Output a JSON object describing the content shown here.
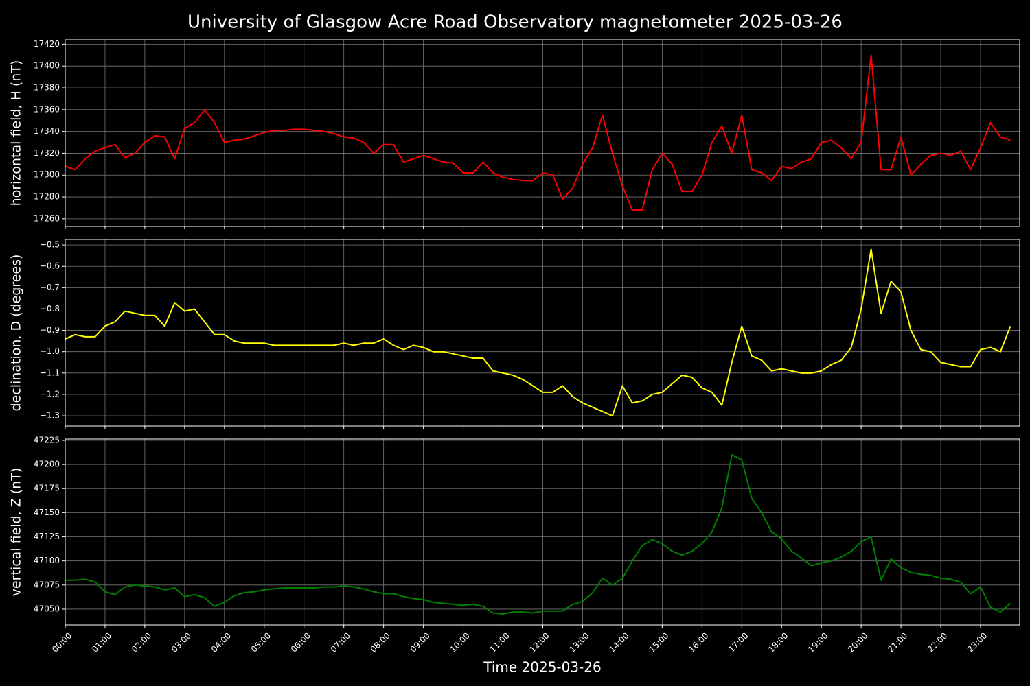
{
  "chart_data": [
    {
      "type": "line",
      "title": "University of Glasgow Acre Road Observatory magnetometer 2025-03-26",
      "ylabel": "horizontal field, H (nT)",
      "color": "#ff0000",
      "grid": true,
      "xlim": [
        "00:00",
        "23:59"
      ],
      "ylim": [
        17253,
        17424
      ],
      "yticks": [
        17260,
        17280,
        17300,
        17320,
        17340,
        17360,
        17380,
        17400,
        17420
      ],
      "x": [
        "00:00",
        "00:15",
        "00:30",
        "00:45",
        "01:00",
        "01:15",
        "01:30",
        "01:45",
        "02:00",
        "02:15",
        "02:30",
        "02:45",
        "03:00",
        "03:15",
        "03:30",
        "03:45",
        "04:00",
        "04:15",
        "04:30",
        "04:45",
        "05:00",
        "05:15",
        "05:30",
        "05:45",
        "06:00",
        "06:15",
        "06:30",
        "06:45",
        "07:00",
        "07:15",
        "07:30",
        "07:45",
        "08:00",
        "08:15",
        "08:30",
        "08:45",
        "09:00",
        "09:15",
        "09:30",
        "09:45",
        "10:00",
        "10:15",
        "10:30",
        "10:45",
        "11:00",
        "11:15",
        "11:30",
        "11:45",
        "12:00",
        "12:15",
        "12:30",
        "12:45",
        "13:00",
        "13:15",
        "13:30",
        "13:45",
        "14:00",
        "14:15",
        "14:30",
        "14:45",
        "15:00",
        "15:15",
        "15:30",
        "15:45",
        "16:00",
        "16:15",
        "16:30",
        "16:45",
        "17:00",
        "17:15",
        "17:30",
        "17:45",
        "18:00",
        "18:15",
        "18:30",
        "18:45",
        "19:00",
        "19:15",
        "19:30",
        "19:45",
        "20:00",
        "20:15",
        "20:30",
        "20:45",
        "21:00",
        "21:15",
        "21:30",
        "21:45",
        "22:00",
        "22:15",
        "22:30",
        "22:45",
        "23:00",
        "23:15",
        "23:30",
        "23:45"
      ],
      "values": [
        17308,
        17305,
        17315,
        17322,
        17325,
        17328,
        17316,
        17320,
        17330,
        17336,
        17335,
        17315,
        17343,
        17348,
        17360,
        17348,
        17330,
        17332,
        17333,
        17336,
        17339,
        17341,
        17341,
        17342,
        17342,
        17341,
        17340,
        17338,
        17335,
        17334,
        17330,
        17320,
        17328,
        17328,
        17312,
        17315,
        17318,
        17315,
        17312,
        17311,
        17302,
        17302,
        17312,
        17302,
        17298,
        17296,
        17295,
        17295,
        17302,
        17300,
        17278,
        17288,
        17310,
        17325,
        17355,
        17320,
        17290,
        17268,
        17268,
        17305,
        17320,
        17310,
        17285,
        17285,
        17300,
        17330,
        17345,
        17320,
        17355,
        17305,
        17302,
        17295,
        17308,
        17306,
        17312,
        17315,
        17330,
        17332,
        17325,
        17315,
        17330,
        17410,
        17305,
        17305,
        17335,
        17300,
        17310,
        17318,
        17320,
        17318,
        17322,
        17305,
        17325,
        17348,
        17335,
        17332
      ]
    },
    {
      "type": "line",
      "ylabel": "declination, D (degrees)",
      "color": "#ffff00",
      "grid": true,
      "xlim": [
        "00:00",
        "23:59"
      ],
      "ylim": [
        -1.348,
        -0.474
      ],
      "yticks": [
        {
          "value": -1.3,
          "label": "−1.3"
        },
        {
          "value": -1.2,
          "label": "−1.2"
        },
        {
          "value": -1.1,
          "label": "−1.1"
        },
        {
          "value": -1.0,
          "label": "−1.0"
        },
        {
          "value": -0.9,
          "label": "−0.9"
        },
        {
          "value": -0.8,
          "label": "−0.8"
        },
        {
          "value": -0.7,
          "label": "−0.7"
        },
        {
          "value": -0.6,
          "label": "−0.6"
        },
        {
          "value": -0.5,
          "label": "−0.5"
        }
      ],
      "x": [
        "00:00",
        "00:15",
        "00:30",
        "00:45",
        "01:00",
        "01:15",
        "01:30",
        "01:45",
        "02:00",
        "02:15",
        "02:30",
        "02:45",
        "03:00",
        "03:15",
        "03:30",
        "03:45",
        "04:00",
        "04:15",
        "04:30",
        "04:45",
        "05:00",
        "05:15",
        "05:30",
        "05:45",
        "06:00",
        "06:15",
        "06:30",
        "06:45",
        "07:00",
        "07:15",
        "07:30",
        "07:45",
        "08:00",
        "08:15",
        "08:30",
        "08:45",
        "09:00",
        "09:15",
        "09:30",
        "09:45",
        "10:00",
        "10:15",
        "10:30",
        "10:45",
        "11:00",
        "11:15",
        "11:30",
        "11:45",
        "12:00",
        "12:15",
        "12:30",
        "12:45",
        "13:00",
        "13:15",
        "13:30",
        "13:45",
        "14:00",
        "14:15",
        "14:30",
        "14:45",
        "15:00",
        "15:15",
        "15:30",
        "15:45",
        "16:00",
        "16:15",
        "16:30",
        "16:45",
        "17:00",
        "17:15",
        "17:30",
        "17:45",
        "18:00",
        "18:15",
        "18:30",
        "18:45",
        "19:00",
        "19:15",
        "19:30",
        "19:45",
        "20:00",
        "20:15",
        "20:30",
        "20:45",
        "21:00",
        "21:15",
        "21:30",
        "21:45",
        "22:00",
        "22:15",
        "22:30",
        "22:45",
        "23:00",
        "23:15",
        "23:30",
        "23:45"
      ],
      "values": [
        -0.94,
        -0.92,
        -0.93,
        -0.93,
        -0.88,
        -0.86,
        -0.81,
        -0.82,
        -0.83,
        -0.83,
        -0.88,
        -0.77,
        -0.81,
        -0.8,
        -0.86,
        -0.92,
        -0.92,
        -0.95,
        -0.96,
        -0.96,
        -0.96,
        -0.97,
        -0.97,
        -0.97,
        -0.97,
        -0.97,
        -0.97,
        -0.97,
        -0.96,
        -0.97,
        -0.96,
        -0.96,
        -0.94,
        -0.97,
        -0.99,
        -0.97,
        -0.98,
        -1.0,
        -1.0,
        -1.01,
        -1.02,
        -1.03,
        -1.03,
        -1.09,
        -1.1,
        -1.11,
        -1.13,
        -1.16,
        -1.19,
        -1.19,
        -1.16,
        -1.21,
        -1.24,
        -1.26,
        -1.28,
        -1.3,
        -1.16,
        -1.24,
        -1.23,
        -1.2,
        -1.19,
        -1.15,
        -1.11,
        -1.12,
        -1.17,
        -1.19,
        -1.25,
        -1.05,
        -0.88,
        -1.02,
        -1.04,
        -1.09,
        -1.08,
        -1.09,
        -1.1,
        -1.1,
        -1.09,
        -1.06,
        -1.04,
        -0.98,
        -0.8,
        -0.52,
        -0.82,
        -0.67,
        -0.72,
        -0.9,
        -0.99,
        -1.0,
        -1.05,
        -1.06,
        -1.07,
        -1.07,
        -0.99,
        -0.98,
        -1.0,
        -0.88
      ]
    },
    {
      "type": "line",
      "ylabel": "vertical field, Z (nT)",
      "xlabel": "Time 2025-03-26",
      "color": "#008000",
      "grid": true,
      "xlim": [
        "00:00",
        "23:59"
      ],
      "ylim": [
        47033.6,
        47226.4
      ],
      "yticks": [
        47050,
        47075,
        47100,
        47125,
        47150,
        47175,
        47200,
        47225
      ],
      "xticks": [
        "00:00",
        "01:00",
        "02:00",
        "03:00",
        "04:00",
        "05:00",
        "06:00",
        "07:00",
        "08:00",
        "09:00",
        "10:00",
        "11:00",
        "12:00",
        "13:00",
        "14:00",
        "15:00",
        "16:00",
        "17:00",
        "18:00",
        "19:00",
        "20:00",
        "21:00",
        "22:00",
        "23:00"
      ],
      "x": [
        "00:00",
        "00:15",
        "00:30",
        "00:45",
        "01:00",
        "01:15",
        "01:30",
        "01:45",
        "02:00",
        "02:15",
        "02:30",
        "02:45",
        "03:00",
        "03:15",
        "03:30",
        "03:45",
        "04:00",
        "04:15",
        "04:30",
        "04:45",
        "05:00",
        "05:15",
        "05:30",
        "05:45",
        "06:00",
        "06:15",
        "06:30",
        "06:45",
        "07:00",
        "07:15",
        "07:30",
        "07:45",
        "08:00",
        "08:15",
        "08:30",
        "08:45",
        "09:00",
        "09:15",
        "09:30",
        "09:45",
        "10:00",
        "10:15",
        "10:30",
        "10:45",
        "11:00",
        "11:15",
        "11:30",
        "11:45",
        "12:00",
        "12:15",
        "12:30",
        "12:45",
        "13:00",
        "13:15",
        "13:30",
        "13:45",
        "14:00",
        "14:15",
        "14:30",
        "14:45",
        "15:00",
        "15:15",
        "15:30",
        "15:45",
        "16:00",
        "16:15",
        "16:30",
        "16:45",
        "17:00",
        "17:15",
        "17:30",
        "17:45",
        "18:00",
        "18:15",
        "18:30",
        "18:45",
        "19:00",
        "19:15",
        "19:30",
        "19:45",
        "20:00",
        "20:15",
        "20:30",
        "20:45",
        "21:00",
        "21:15",
        "21:30",
        "21:45",
        "22:00",
        "22:15",
        "22:30",
        "22:45",
        "23:00",
        "23:15",
        "23:30",
        "23:45"
      ],
      "values": [
        47080,
        47080,
        47081,
        47078,
        47068,
        47065,
        47073,
        47075,
        47074,
        47073,
        47070,
        47072,
        47063,
        47065,
        47062,
        47053,
        47057,
        47064,
        47067,
        47068,
        47070,
        47071,
        47072,
        47072,
        47072,
        47072,
        47073,
        47073,
        47074,
        47073,
        47071,
        47068,
        47066,
        47066,
        47063,
        47061,
        47060,
        47057,
        47056,
        47055,
        47054,
        47055,
        47053,
        47046,
        47045,
        47047,
        47047,
        47046,
        47048,
        47048,
        47048,
        47055,
        47058,
        47067,
        47082,
        47075,
        47082,
        47100,
        47116,
        47122,
        47118,
        47110,
        47106,
        47110,
        47118,
        47130,
        47155,
        47210,
        47205,
        47165,
        47150,
        47130,
        47123,
        47110,
        47103,
        47095,
        47098,
        47100,
        47104,
        47110,
        47120,
        47125,
        47080,
        47102,
        47093,
        47088,
        47086,
        47085,
        47082,
        47081,
        47078,
        47066,
        47073,
        47052,
        47047,
        47056
      ]
    }
  ]
}
